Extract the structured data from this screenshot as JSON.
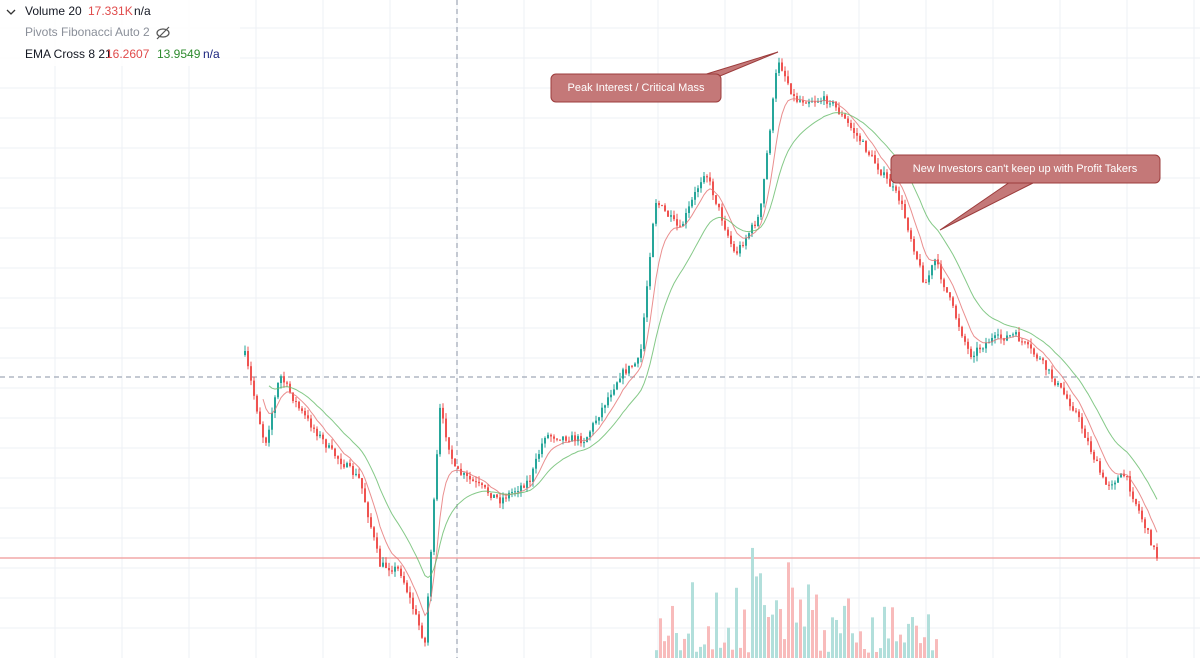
{
  "legend": {
    "volume": {
      "name": "Volume 20",
      "value": "17.331K",
      "extra": "n/a"
    },
    "pivots": {
      "name": "Pivots Fibonacci Auto 2"
    },
    "ema": {
      "name": "EMA Cross 8 21",
      "fast": "16.2607",
      "slow": "13.9549",
      "extra": "n/a"
    }
  },
  "annotations": [
    "Peak Interest / Critical Mass",
    "New Investors can't keep up with Profit Takers"
  ]
}
